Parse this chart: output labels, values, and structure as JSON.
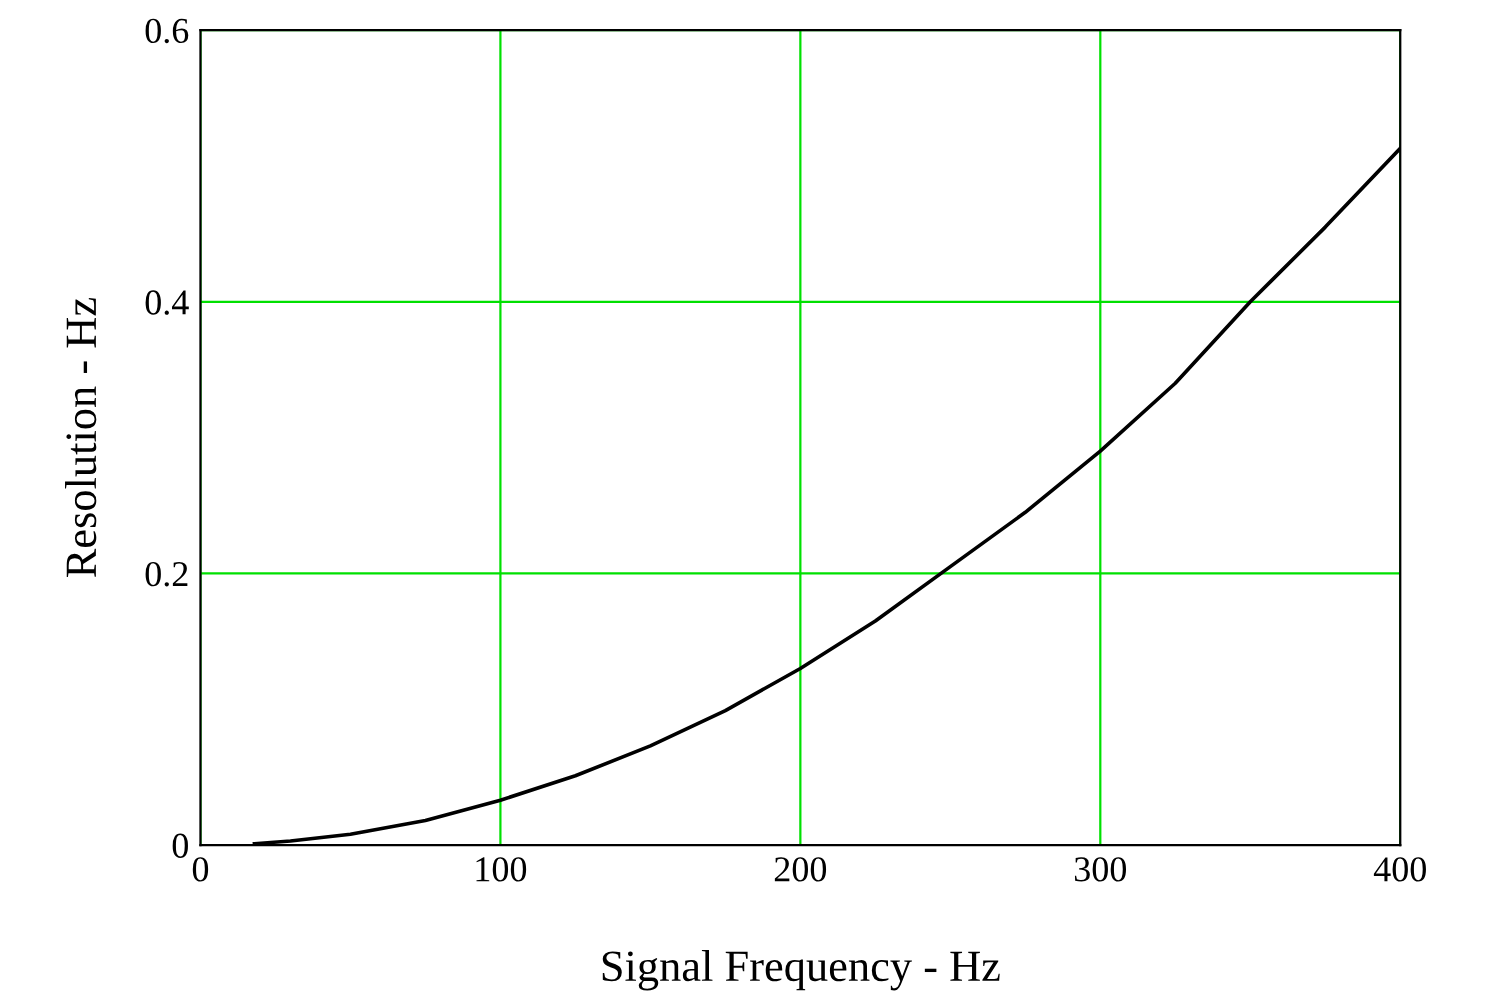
{
  "chart_data": {
    "type": "line",
    "xlabel": "Signal Frequency - Hz",
    "ylabel": "Resolution - Hz",
    "x": [
      18,
      30,
      50,
      75,
      100,
      125,
      150,
      175,
      200,
      225,
      250,
      275,
      300,
      325,
      350,
      375,
      400
    ],
    "series": [
      {
        "color": "#000000",
        "values": [
          0.001,
          0.003,
          0.008,
          0.018,
          0.033,
          0.051,
          0.073,
          0.099,
          0.13,
          0.165,
          0.205,
          0.245,
          0.29,
          0.34,
          0.4,
          0.455,
          0.513
        ]
      }
    ],
    "xlim": [
      0,
      400
    ],
    "ylim": [
      0,
      0.6
    ],
    "xticks": [
      0,
      100,
      200,
      300,
      400
    ],
    "yticks": [
      0,
      0.2,
      0.4,
      0.6
    ],
    "grid": true,
    "marker": "none",
    "line_style": "solid"
  }
}
